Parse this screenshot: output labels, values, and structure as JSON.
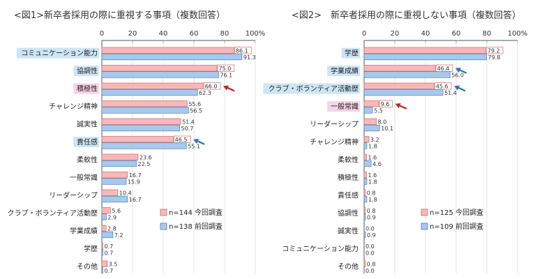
{
  "colors": {
    "current": "#f6b8b8",
    "current_stroke": "#d06a6a",
    "previous": "#a8c9ec",
    "previous_stroke": "#4a7fbf",
    "highlight_blue": "#cde5f5",
    "highlight_pink": "#f6d3e6",
    "arrow_red": "#c0282d",
    "arrow_blue": "#2c79b8"
  },
  "chart_data": [
    {
      "type": "bar",
      "orientation": "horizontal",
      "title": "<図1>新卒者採用の際に重視する事項（複数回答）",
      "xlim": [
        0,
        100
      ],
      "ticks": [
        "0",
        "20",
        "40",
        "60",
        "80",
        "100%"
      ],
      "categories": [
        "コミュニケーション能力",
        "協調性",
        "積極性",
        "チャレンジ精神",
        "誠実性",
        "責任感",
        "柔軟性",
        "一般常識",
        "リーダーシップ",
        "クラブ・ボランティア活動歴",
        "学業成績",
        "学歴",
        "その他"
      ],
      "highlight": [
        "blue",
        "blue",
        "pink",
        "none",
        "none",
        "blue",
        "none",
        "none",
        "none",
        "none",
        "none",
        "none",
        "none"
      ],
      "arrows": [
        null,
        null,
        "red",
        null,
        null,
        "blue",
        null,
        null,
        null,
        null,
        null,
        null,
        null
      ],
      "series": [
        {
          "name": "n=144 今回調査",
          "values": [
            86.1,
            75.0,
            66.0,
            55.6,
            51.4,
            46.5,
            23.6,
            16.7,
            10.4,
            5.6,
            2.8,
            0.7,
            3.5
          ]
        },
        {
          "name": "n=138 前回調査",
          "values": [
            91.3,
            76.1,
            62.3,
            56.5,
            50.7,
            55.1,
            22.5,
            15.9,
            16.7,
            2.9,
            7.2,
            0.7,
            0.7
          ]
        }
      ],
      "value_labels": [
        [
          "86.1",
          "75.0",
          "66.0",
          "55.6",
          "51.4",
          "46.5",
          "23.6",
          "16.7",
          "10.4",
          "5.6",
          "2.8",
          "0.7",
          "3.5"
        ],
        [
          "91.3",
          "76.1",
          "62.3",
          "56.5",
          "50.7",
          "55.1",
          "22.5",
          "15.9",
          "16.7",
          "2.9",
          "7.2",
          "0.7",
          "0.7"
        ]
      ],
      "boxed_labels": [
        [
          true,
          true,
          true,
          false,
          false,
          true,
          false,
          false,
          false,
          false,
          false,
          false,
          false
        ],
        [
          false,
          false,
          false,
          false,
          false,
          false,
          false,
          false,
          false,
          false,
          false,
          false,
          false
        ]
      ],
      "legend_placement": "bottom-right"
    },
    {
      "type": "bar",
      "orientation": "horizontal",
      "title": "<図2>　新卒者採用の際に重視しない事項（複数回答）",
      "xlim": [
        0,
        100
      ],
      "ticks": [
        "0",
        "20",
        "40",
        "60",
        "80",
        "100%"
      ],
      "categories": [
        "学歴",
        "学業成績",
        "クラブ・ボランティア活動歴",
        "一般常識",
        "リーダーシップ",
        "チャレンジ精神",
        "柔軟性",
        "積極性",
        "責任感",
        "協調性",
        "誠実性",
        "コミュニケーション能力",
        "その他"
      ],
      "highlight": [
        "blue",
        "blue",
        "blue",
        "pink",
        "none",
        "none",
        "none",
        "none",
        "none",
        "none",
        "none",
        "none",
        "none"
      ],
      "arrows": [
        null,
        "blue",
        "blue",
        "red",
        null,
        null,
        null,
        null,
        null,
        null,
        null,
        null,
        null
      ],
      "series": [
        {
          "name": "n=125 今回調査",
          "values": [
            79.2,
            46.4,
            45.6,
            9.6,
            8.0,
            3.2,
            1.6,
            1.6,
            0.8,
            0.8,
            0.0,
            0.0,
            0.8
          ]
        },
        {
          "name": "n=109 前回調査",
          "values": [
            79.8,
            56.0,
            51.4,
            5.5,
            10.1,
            1.8,
            4.6,
            1.8,
            1.8,
            0.9,
            0.9,
            0.0,
            0.0
          ]
        }
      ],
      "value_labels": [
        [
          "79.2",
          "46.4",
          "45.6",
          "9.6",
          "8.0",
          "3.2",
          "1.6",
          "1.6",
          "0.8",
          "0.8",
          "0.0",
          "0.0",
          "0.8"
        ],
        [
          "79.8",
          "56.0",
          "51.4",
          "5.5",
          "10.1",
          "1.8",
          "4.6",
          "1.8",
          "1.8",
          "0.9",
          "0.9",
          "0.0",
          "0.0"
        ]
      ],
      "boxed_labels": [
        [
          true,
          true,
          true,
          true,
          false,
          false,
          false,
          false,
          false,
          false,
          false,
          false,
          false
        ],
        [
          false,
          false,
          false,
          false,
          false,
          false,
          false,
          false,
          false,
          false,
          false,
          false,
          false
        ]
      ],
      "legend_placement": "bottom-right"
    }
  ]
}
